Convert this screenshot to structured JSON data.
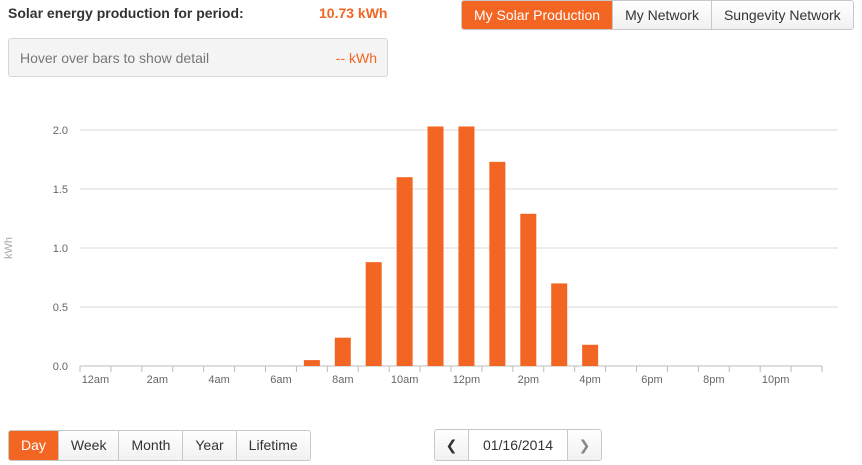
{
  "summary": {
    "label": "Solar energy production for period:",
    "value": "10.73 kWh"
  },
  "tabs": [
    {
      "label": "My Solar Production",
      "active": true
    },
    {
      "label": "My Network",
      "active": false
    },
    {
      "label": "Sungevity Network",
      "active": false
    }
  ],
  "hover_box": {
    "text": "Hover over bars to show detail",
    "value": "-- kWh"
  },
  "ranges": [
    {
      "label": "Day",
      "active": true
    },
    {
      "label": "Week",
      "active": false
    },
    {
      "label": "Month",
      "active": false
    },
    {
      "label": "Year",
      "active": false
    },
    {
      "label": "Lifetime",
      "active": false
    }
  ],
  "date_nav": {
    "prev_icon": "chevron-left-icon",
    "date": "01/16/2014",
    "next_icon": "chevron-right-icon"
  },
  "colors": {
    "accent": "#f26522",
    "grid": "#d9d9d9",
    "axis_text": "#666666"
  },
  "chart_data": {
    "type": "bar",
    "ylabel": "kWh",
    "ylim": [
      0,
      2.0
    ],
    "yticks": [
      "0.0",
      "0.5",
      "1.0",
      "1.5",
      "2.0"
    ],
    "xtick_labels": [
      "12am",
      "2am",
      "4am",
      "6am",
      "8am",
      "10am",
      "12pm",
      "2pm",
      "4pm",
      "6pm",
      "8pm",
      "10pm"
    ],
    "categories": [
      "12am",
      "1am",
      "2am",
      "3am",
      "4am",
      "5am",
      "6am",
      "7am",
      "8am",
      "9am",
      "10am",
      "11am",
      "12pm",
      "1pm",
      "2pm",
      "3pm",
      "4pm",
      "5pm",
      "6pm",
      "7pm",
      "8pm",
      "9pm",
      "10pm",
      "11pm"
    ],
    "values": [
      0,
      0,
      0,
      0,
      0,
      0,
      0,
      0.05,
      0.24,
      0.88,
      1.6,
      2.03,
      2.03,
      1.73,
      1.29,
      0.7,
      0.18,
      0,
      0,
      0,
      0,
      0,
      0,
      0
    ],
    "grid": true,
    "legend": "none"
  }
}
